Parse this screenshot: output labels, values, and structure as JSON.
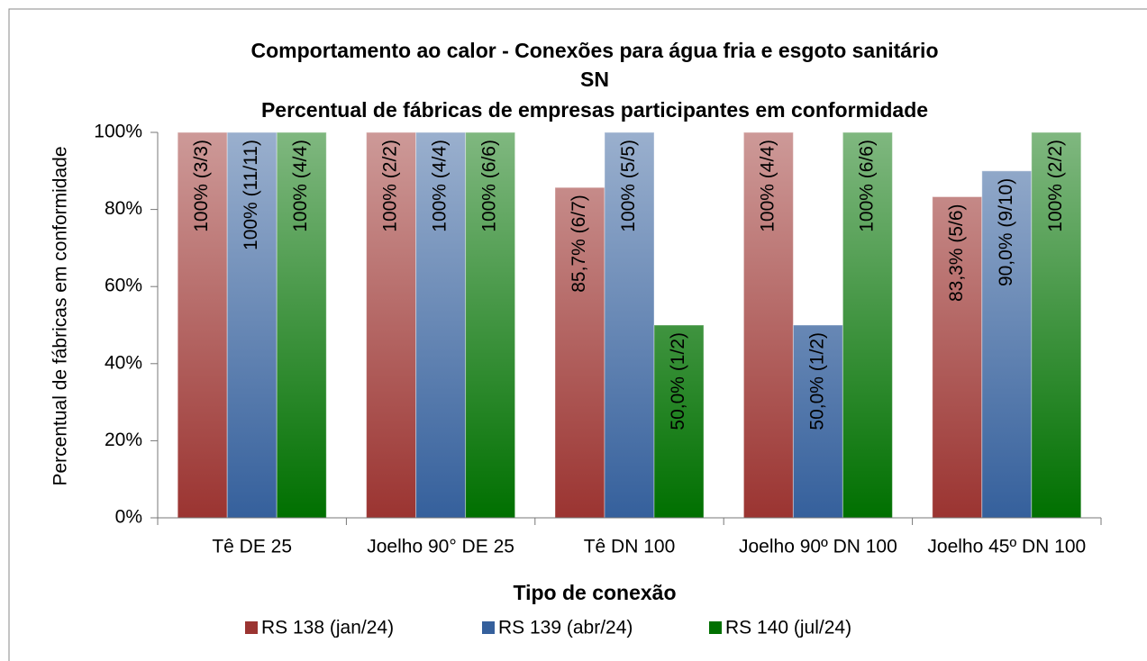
{
  "chart_data": {
    "type": "bar",
    "title_lines": [
      "Comportamento ao calor - Conexões para água fria e esgoto sanitário",
      "SN",
      "Percentual de fábricas de empresas participantes em conformidade"
    ],
    "x_label": "Tipo de conexão",
    "y_label": "Percentual de fábricas em conformidade",
    "categories": [
      "Tê DE 25",
      "Joelho 90° DE 25",
      "Tê DN 100",
      "Joelho 90º DN 100",
      "Joelho 45º DN 100"
    ],
    "series": [
      {
        "name": "RS 138 (jan/24)",
        "color": "#9b3431",
        "values": [
          100,
          100,
          85.7,
          100,
          83.3
        ],
        "value_labels": [
          "100% (3/3)",
          "100% (2/2)",
          "85,7% (6/7)",
          "100% (4/4)",
          "83,3% (5/6)"
        ]
      },
      {
        "name": "RS 139 (abr/24)",
        "color": "#35609c",
        "values": [
          100,
          100,
          100,
          50,
          90
        ],
        "value_labels": [
          "100% (11/11)",
          "100% (4/4)",
          "100% (5/5)",
          "50,0% (1/2)",
          "90,0% (9/10)"
        ]
      },
      {
        "name": "RS 140 (jul/24)",
        "color": "#007000",
        "values": [
          100,
          100,
          50,
          100,
          100
        ],
        "value_labels": [
          "100% (4/4)",
          "100% (6/6)",
          "50,0% (1/2)",
          "100% (6/6)",
          "100% (2/2)"
        ]
      }
    ],
    "ylim": [
      0,
      100
    ],
    "yticks": [
      {
        "value": 0,
        "label": "0%"
      },
      {
        "value": 20,
        "label": "20%"
      },
      {
        "value": 40,
        "label": "40%"
      },
      {
        "value": 60,
        "label": "60%"
      },
      {
        "value": 80,
        "label": "80%"
      },
      {
        "value": 100,
        "label": "100%"
      }
    ],
    "legend": "bottom"
  }
}
